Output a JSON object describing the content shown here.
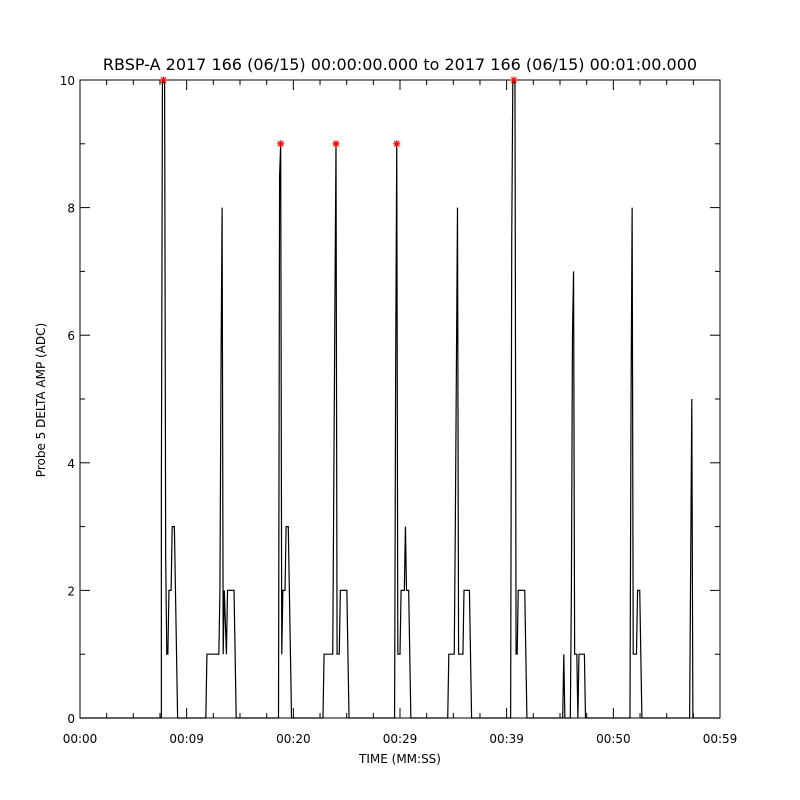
{
  "chart_data": {
    "type": "line",
    "title": "RBSP-A 2017 166 (06/15) 00:00:00.000 to 2017 166 (06/15) 00:01:00.000",
    "xlabel": "TIME (MM:SS)",
    "ylabel": "Probe 5 DELTA AMP (ADC)",
    "xlim": [
      0,
      59
    ],
    "ylim": [
      0,
      10
    ],
    "x_ticks": [
      {
        "value": 0,
        "label": "00:00"
      },
      {
        "value": 9.83,
        "label": "00:09"
      },
      {
        "value": 19.67,
        "label": "00:20"
      },
      {
        "value": 29.5,
        "label": "00:29"
      },
      {
        "value": 39.33,
        "label": "00:39"
      },
      {
        "value": 49.17,
        "label": "00:50"
      },
      {
        "value": 59,
        "label": "00:59"
      }
    ],
    "y_ticks": [
      {
        "value": 0,
        "label": "0"
      },
      {
        "value": 2,
        "label": "2"
      },
      {
        "value": 4,
        "label": "4"
      },
      {
        "value": 6,
        "label": "6"
      },
      {
        "value": 8,
        "label": "8"
      },
      {
        "value": 10,
        "label": "10"
      }
    ],
    "series": [
      {
        "color": "#000000",
        "points": [
          [
            0,
            0
          ],
          [
            7.5,
            0
          ],
          [
            7.5,
            3.5
          ],
          [
            7.6,
            10
          ],
          [
            7.8,
            10
          ],
          [
            7.9,
            2.5
          ],
          [
            8.0,
            1
          ],
          [
            8.1,
            1
          ],
          [
            8.2,
            2
          ],
          [
            8.4,
            2
          ],
          [
            8.5,
            3
          ],
          [
            8.7,
            3
          ],
          [
            8.8,
            2
          ],
          [
            8.9,
            1
          ],
          [
            9.0,
            0
          ],
          [
            11.6,
            0
          ],
          [
            11.7,
            1
          ],
          [
            12.8,
            1
          ],
          [
            12.9,
            2
          ],
          [
            13.0,
            5.5
          ],
          [
            13.1,
            8
          ],
          [
            13.2,
            1
          ],
          [
            13.3,
            2
          ],
          [
            13.5,
            1
          ],
          [
            13.6,
            2
          ],
          [
            14.2,
            2
          ],
          [
            14.3,
            1
          ],
          [
            14.4,
            0
          ],
          [
            18.3,
            0
          ],
          [
            18.4,
            8.5
          ],
          [
            18.5,
            9
          ],
          [
            18.6,
            1
          ],
          [
            18.7,
            2
          ],
          [
            18.9,
            2
          ],
          [
            19.0,
            3
          ],
          [
            19.2,
            3
          ],
          [
            19.3,
            2
          ],
          [
            19.4,
            1
          ],
          [
            19.5,
            0
          ],
          [
            22.4,
            0
          ],
          [
            22.5,
            1
          ],
          [
            23.3,
            1
          ],
          [
            23.5,
            6.5
          ],
          [
            23.6,
            9
          ],
          [
            23.7,
            1
          ],
          [
            23.9,
            1
          ],
          [
            24.0,
            2
          ],
          [
            24.6,
            2
          ],
          [
            24.7,
            1
          ],
          [
            24.8,
            0
          ],
          [
            29.0,
            0
          ],
          [
            29.1,
            5.5
          ],
          [
            29.2,
            9
          ],
          [
            29.3,
            1
          ],
          [
            29.5,
            1
          ],
          [
            29.6,
            2
          ],
          [
            29.9,
            2
          ],
          [
            30.0,
            3
          ],
          [
            30.1,
            2
          ],
          [
            30.3,
            2
          ],
          [
            30.4,
            1
          ],
          [
            30.5,
            0
          ],
          [
            33.9,
            0
          ],
          [
            34.0,
            1
          ],
          [
            34.5,
            1
          ],
          [
            34.6,
            3
          ],
          [
            34.8,
            8
          ],
          [
            34.9,
            1
          ],
          [
            35.3,
            1
          ],
          [
            35.4,
            2
          ],
          [
            35.9,
            2
          ],
          [
            36.0,
            1
          ],
          [
            36.1,
            0
          ],
          [
            39.7,
            0
          ],
          [
            39.8,
            7.5
          ],
          [
            39.9,
            10
          ],
          [
            40.1,
            10
          ],
          [
            40.2,
            1
          ],
          [
            40.3,
            1
          ],
          [
            40.4,
            2
          ],
          [
            41.0,
            2
          ],
          [
            41.1,
            1
          ],
          [
            41.2,
            0
          ],
          [
            44.5,
            0
          ],
          [
            44.6,
            1
          ],
          [
            44.7,
            0
          ],
          [
            45.2,
            0
          ],
          [
            45.3,
            2
          ],
          [
            45.4,
            6
          ],
          [
            45.5,
            7
          ],
          [
            45.6,
            1
          ],
          [
            45.8,
            1
          ],
          [
            45.9,
            0
          ],
          [
            46.0,
            1
          ],
          [
            46.5,
            1
          ],
          [
            46.6,
            0
          ],
          [
            50.7,
            0
          ],
          [
            50.8,
            5
          ],
          [
            50.9,
            8
          ],
          [
            51.0,
            1
          ],
          [
            51.3,
            1
          ],
          [
            51.4,
            2
          ],
          [
            51.6,
            2
          ],
          [
            51.7,
            1
          ],
          [
            51.8,
            0
          ],
          [
            56.2,
            0
          ],
          [
            56.3,
            2.5
          ],
          [
            56.4,
            5
          ],
          [
            56.5,
            0
          ],
          [
            59,
            0
          ]
        ]
      }
    ],
    "markers": {
      "symbol": "*",
      "color": "#ff0000",
      "points": [
        [
          7.7,
          10
        ],
        [
          18.5,
          9
        ],
        [
          23.6,
          9
        ],
        [
          29.2,
          9
        ],
        [
          40.0,
          10
        ]
      ]
    },
    "grid": false,
    "legend": "none"
  }
}
